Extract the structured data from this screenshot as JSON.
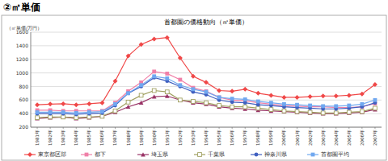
{
  "heading": "②㎡単価",
  "chart_data": {
    "type": "line",
    "title": "首都圏の価格動向（㎡単価）",
    "y_label": "（㎡単価/万円）",
    "categories": [
      "1981年",
      "1982年",
      "1983年",
      "1984年",
      "1985年",
      "1986年",
      "1987年",
      "1988年",
      "1989年",
      "1990年",
      "1991年",
      "1992年",
      "1993年",
      "1994年",
      "1995年",
      "1996年",
      "1997年",
      "1998年",
      "1999年",
      "2000年",
      "2001年",
      "2002年",
      "2003年",
      "2004年",
      "2005年",
      "2006年",
      "2007年"
    ],
    "series": [
      {
        "name": "東京都区部",
        "color": "#f04848",
        "marker": "diamond",
        "values": [
          530,
          540,
          545,
          530,
          545,
          560,
          880,
          1250,
          1420,
          1500,
          1520,
          1220,
          950,
          860,
          740,
          730,
          760,
          700,
          670,
          640,
          640,
          650,
          660,
          660,
          670,
          690,
          830
        ]
      },
      {
        "name": "都下",
        "color": "#f080a8",
        "marker": "square",
        "values": [
          450,
          450,
          440,
          440,
          440,
          440,
          560,
          730,
          860,
          1020,
          990,
          900,
          780,
          730,
          640,
          600,
          590,
          560,
          540,
          520,
          510,
          500,
          500,
          490,
          490,
          500,
          550
        ]
      },
      {
        "name": "埼玉県",
        "color": "#993366",
        "marker": "triangle",
        "values": [
          330,
          340,
          350,
          330,
          340,
          360,
          420,
          500,
          560,
          650,
          660,
          600,
          560,
          540,
          500,
          480,
          470,
          450,
          440,
          430,
          420,
          410,
          400,
          400,
          410,
          420,
          460
        ]
      },
      {
        "name": "千葉県",
        "color": "#a0a060",
        "marker": "square-open",
        "values": [
          340,
          350,
          350,
          340,
          350,
          360,
          440,
          570,
          670,
          740,
          720,
          600,
          580,
          560,
          520,
          500,
          500,
          480,
          460,
          440,
          430,
          420,
          410,
          410,
          420,
          430,
          480
        ]
      },
      {
        "name": "神奈川県",
        "color": "#4060c0",
        "marker": "circle",
        "values": [
          400,
          400,
          400,
          390,
          400,
          410,
          520,
          700,
          800,
          930,
          880,
          800,
          720,
          680,
          600,
          570,
          560,
          530,
          520,
          500,
          490,
          480,
          470,
          470,
          480,
          500,
          560
        ]
      },
      {
        "name": "首都圏平均",
        "color": "#70a8f0",
        "marker": "square",
        "values": [
          420,
          420,
          420,
          410,
          420,
          430,
          540,
          700,
          820,
          950,
          920,
          820,
          760,
          720,
          640,
          620,
          610,
          580,
          560,
          540,
          530,
          520,
          510,
          510,
          520,
          540,
          600
        ]
      }
    ],
    "ylim": [
      200,
      1600
    ],
    "yticks": [
      200,
      400,
      600,
      800,
      1000,
      1200,
      1400,
      1600
    ],
    "grid": true,
    "legend": "bottom"
  }
}
